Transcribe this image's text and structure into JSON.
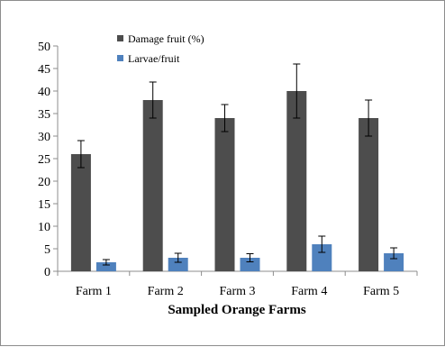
{
  "chart_data": {
    "type": "bar",
    "title": "",
    "xlabel": "Sampled Orange Farms",
    "ylabel": "",
    "categories": [
      "Farm 1",
      "Farm 2",
      "Farm 3",
      "Farm 4",
      "Farm 5"
    ],
    "series": [
      {
        "name": "Damage fruit (%)",
        "color": "#4d4d4d",
        "values": [
          26,
          38,
          34,
          40,
          34
        ],
        "error": [
          3,
          4,
          3,
          6,
          4
        ]
      },
      {
        "name": "Larvae/fruit",
        "color": "#4f81bd",
        "values": [
          2,
          3,
          3,
          6,
          4
        ],
        "error": [
          0.6,
          1,
          0.9,
          1.8,
          1.2
        ]
      }
    ],
    "ylim": [
      0,
      50
    ],
    "yticks": [
      "0",
      "5",
      "10",
      "15",
      "20",
      "25",
      "30",
      "35",
      "40",
      "45",
      "50"
    ],
    "grid": false,
    "legend_position": "top-left"
  }
}
